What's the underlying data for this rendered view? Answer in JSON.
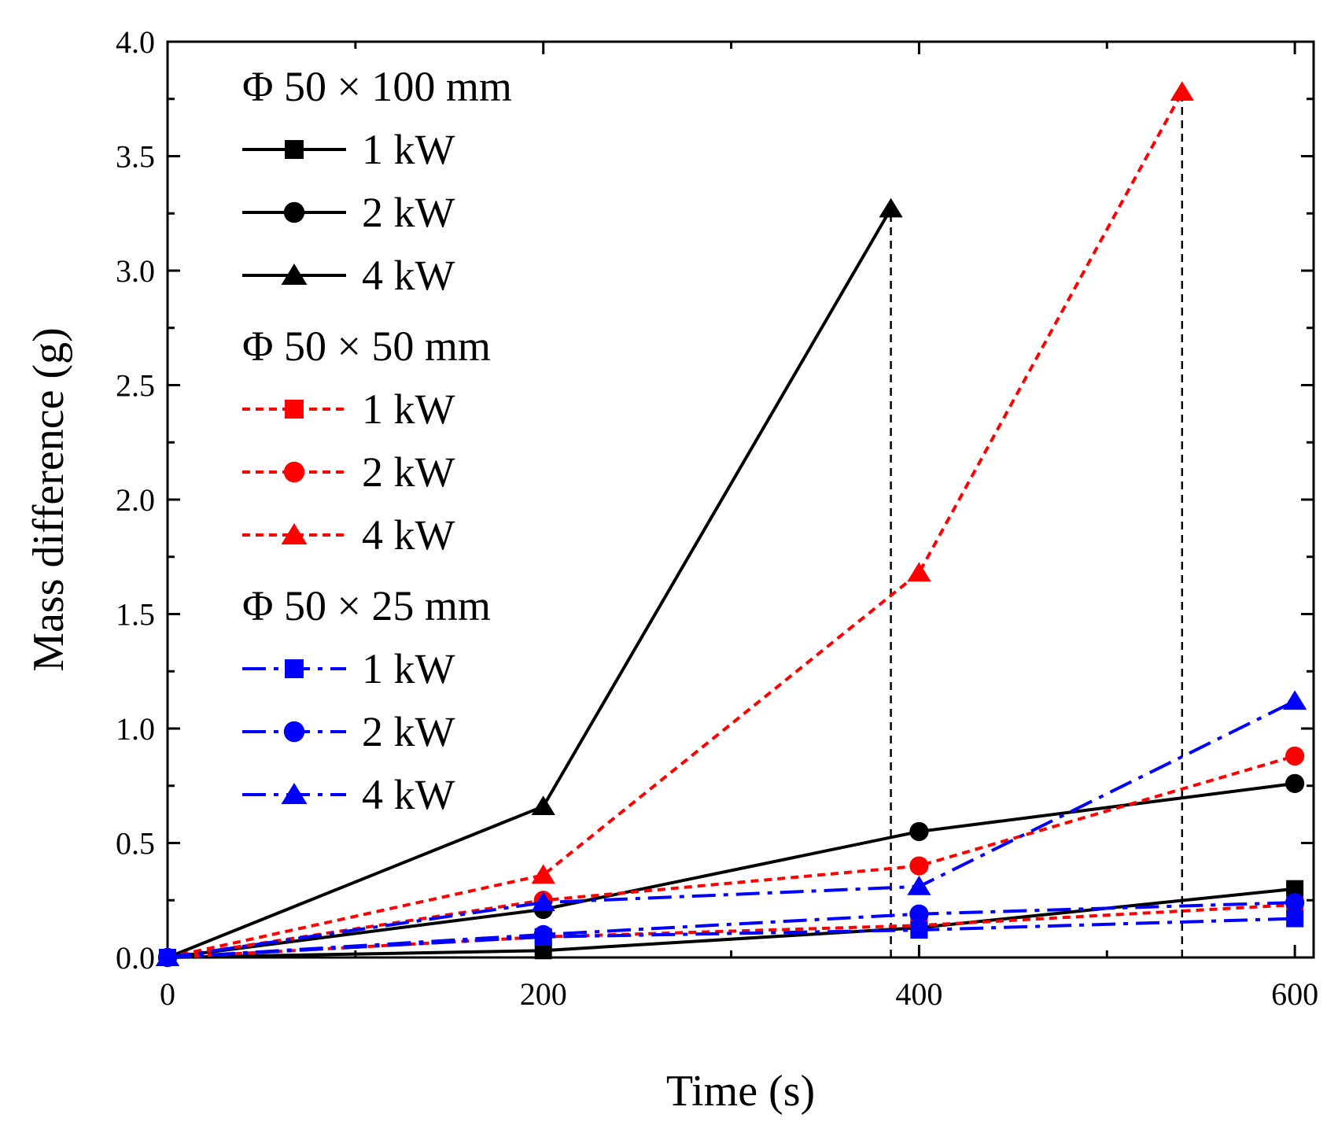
{
  "chart_data": {
    "type": "line",
    "title": "",
    "xlabel": "Time (s)",
    "ylabel": "Mass difference (g)",
    "xlim": [
      0,
      610
    ],
    "ylim": [
      0,
      4.0
    ],
    "x_ticks": [
      0,
      200,
      400,
      600
    ],
    "x_tick_labels": [
      "0",
      "200",
      "400",
      "600"
    ],
    "y_ticks": [
      0,
      0.5,
      1.0,
      1.5,
      2.0,
      2.5,
      3.0,
      3.5,
      4.0
    ],
    "y_tick_labels": [
      "0.0",
      "0.5",
      "1.0",
      "1.5",
      "2.0",
      "2.5",
      "3.0",
      "3.5",
      "4.0"
    ],
    "legend_position": "top-left",
    "groups": [
      {
        "title": "Φ 50 × 100 mm",
        "color": "#000000",
        "dash": "solid",
        "series": [
          {
            "name": "1 kW",
            "marker": "square",
            "x": [
              0,
              200,
              400,
              600
            ],
            "y": [
              0.0,
              0.03,
              0.13,
              0.3
            ]
          },
          {
            "name": "2 kW",
            "marker": "circle",
            "x": [
              0,
              200,
              400,
              600
            ],
            "y": [
              0.0,
              0.21,
              0.55,
              0.76
            ]
          },
          {
            "name": "4 kW",
            "marker": "triangle",
            "x": [
              0,
              200,
              385
            ],
            "y": [
              0.0,
              0.66,
              3.27
            ]
          }
        ]
      },
      {
        "title": "Φ 50 × 50 mm",
        "color": "#ff0000",
        "dash": "dotted",
        "series": [
          {
            "name": "1 kW",
            "marker": "square",
            "x": [
              0,
              200,
              400,
              600
            ],
            "y": [
              0.0,
              0.09,
              0.14,
              0.23
            ]
          },
          {
            "name": "2 kW",
            "marker": "circle",
            "x": [
              0,
              200,
              400,
              600
            ],
            "y": [
              0.0,
              0.25,
              0.4,
              0.88
            ]
          },
          {
            "name": "4 kW",
            "marker": "triangle",
            "x": [
              0,
              200,
              400,
              540
            ],
            "y": [
              0.0,
              0.36,
              1.68,
              3.78
            ]
          }
        ]
      },
      {
        "title": "Φ 50 × 25 mm",
        "color": "#0000ff",
        "dash": "dashdot",
        "series": [
          {
            "name": "1 kW",
            "marker": "square",
            "x": [
              0,
              200,
              400,
              600
            ],
            "y": [
              0.0,
              0.09,
              0.12,
              0.17
            ]
          },
          {
            "name": "2 kW",
            "marker": "circle",
            "x": [
              0,
              200,
              400,
              600
            ],
            "y": [
              0.0,
              0.1,
              0.19,
              0.24
            ]
          },
          {
            "name": "4 kW",
            "marker": "triangle",
            "x": [
              0,
              200,
              400,
              600
            ],
            "y": [
              0.0,
              0.24,
              0.31,
              1.12
            ]
          }
        ]
      }
    ],
    "annotations": [
      {
        "type": "vertical-dashed-line",
        "x": 385,
        "y_from": 0,
        "y_to": 3.27,
        "color": "#000000"
      },
      {
        "type": "vertical-dashed-line",
        "x": 540,
        "y_from": 0,
        "y_to": 3.78,
        "color": "#000000"
      }
    ]
  }
}
